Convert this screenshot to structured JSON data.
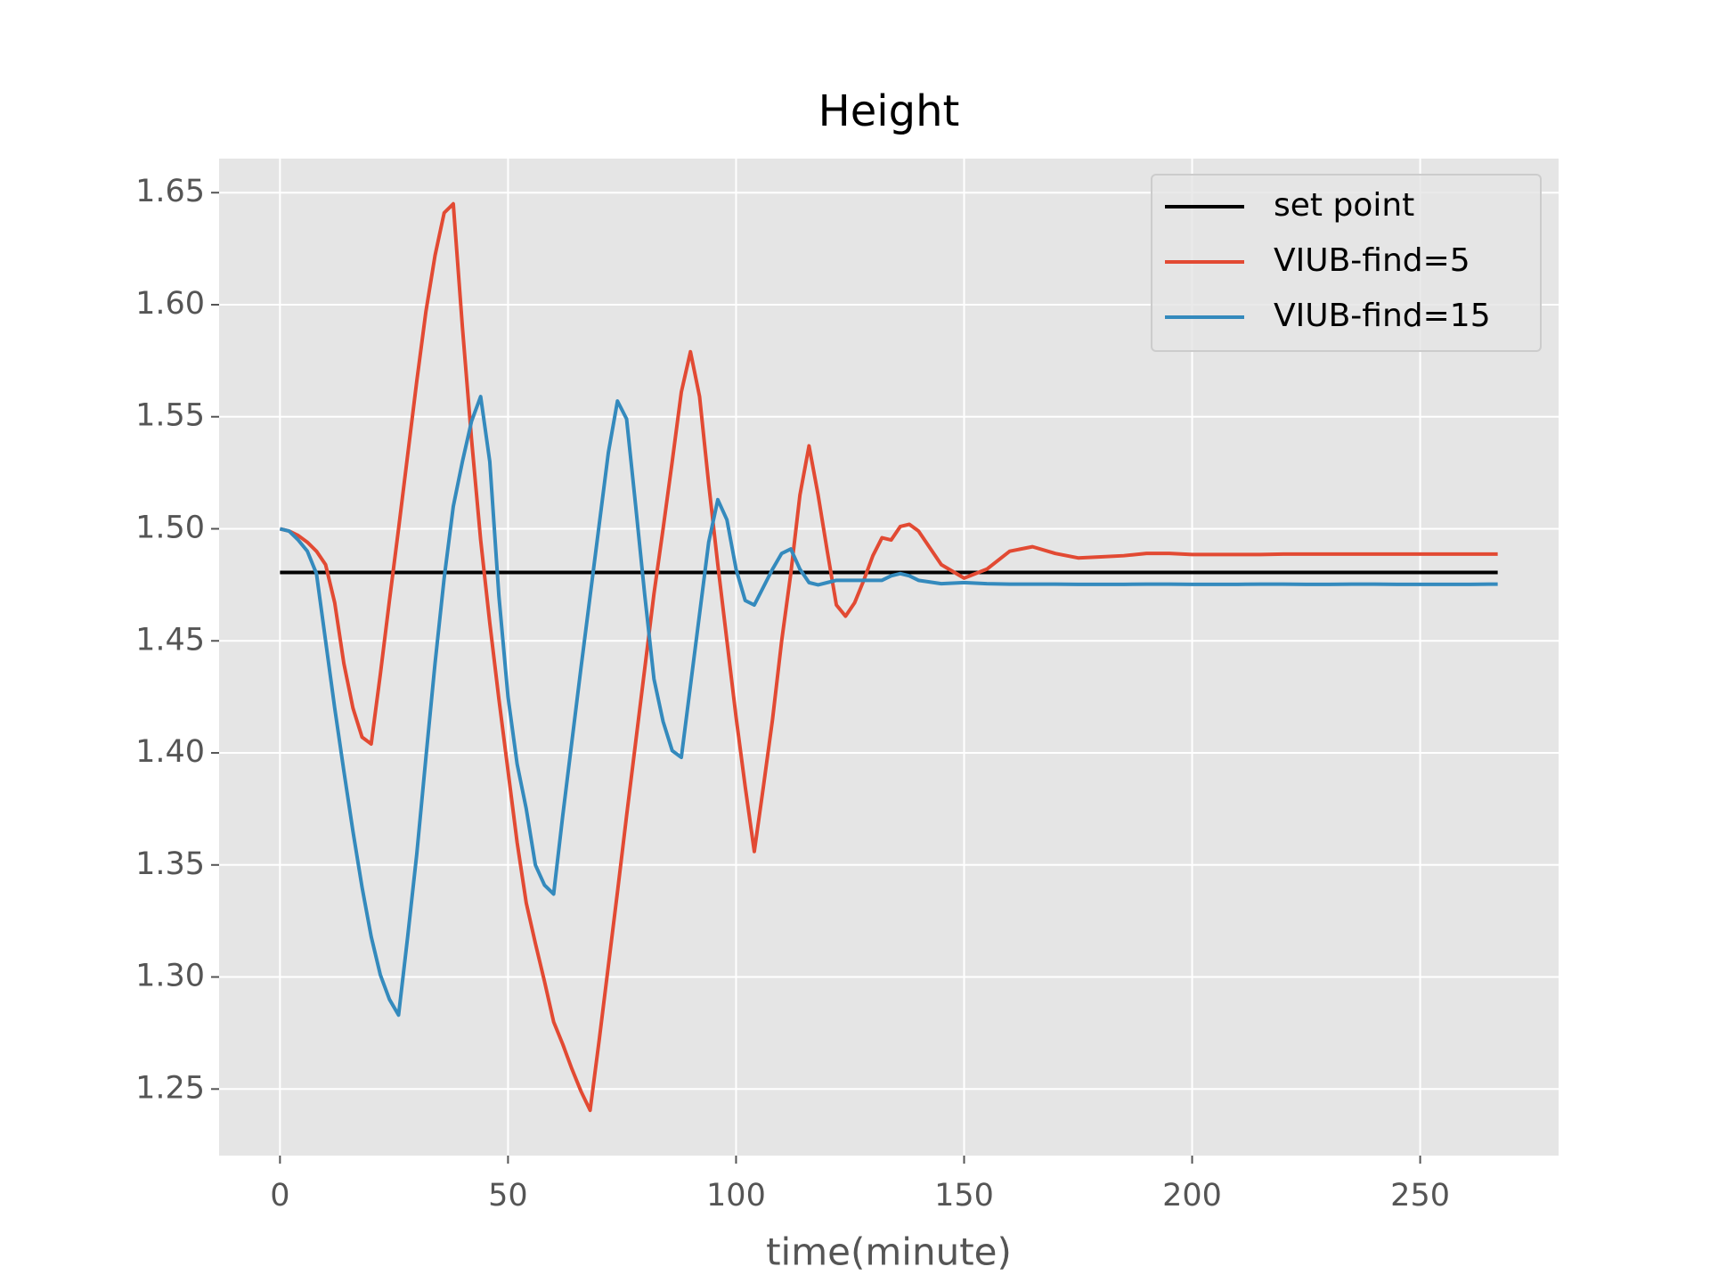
{
  "chart_data": {
    "type": "line",
    "title": "Height",
    "xlabel": "time(minute)",
    "x": [
      0,
      2,
      4,
      6,
      8,
      10,
      12,
      14,
      16,
      18,
      20,
      22,
      24,
      26,
      28,
      30,
      32,
      34,
      36,
      38,
      40,
      42,
      44,
      46,
      48,
      50,
      52,
      54,
      56,
      58,
      60,
      62,
      64,
      66,
      68,
      70,
      72,
      74,
      76,
      78,
      80,
      82,
      84,
      86,
      88,
      90,
      92,
      94,
      96,
      98,
      100,
      102,
      104,
      106,
      108,
      110,
      112,
      114,
      116,
      118,
      120,
      122,
      124,
      126,
      128,
      130,
      132,
      134,
      136,
      138,
      140,
      145,
      150,
      155,
      160,
      165,
      170,
      175,
      180,
      185,
      190,
      195,
      200,
      205,
      210,
      215,
      220,
      225,
      230,
      235,
      240,
      245,
      250,
      255,
      260,
      265,
      267
    ],
    "series": [
      {
        "name": "set point",
        "color": "#000000",
        "values": [
          1.4805,
          1.4805,
          1.4805,
          1.4805,
          1.4805,
          1.4805,
          1.4805,
          1.4805,
          1.4805,
          1.4805,
          1.4805,
          1.4805,
          1.4805,
          1.4805,
          1.4805,
          1.4805,
          1.4805,
          1.4805,
          1.4805,
          1.4805,
          1.4805,
          1.4805,
          1.4805,
          1.4805,
          1.4805,
          1.4805,
          1.4805,
          1.4805,
          1.4805,
          1.4805,
          1.4805,
          1.4805,
          1.4805,
          1.4805,
          1.4805,
          1.4805,
          1.4805,
          1.4805,
          1.4805,
          1.4805,
          1.4805,
          1.4805,
          1.4805,
          1.4805,
          1.4805,
          1.4805,
          1.4805,
          1.4805,
          1.4805,
          1.4805,
          1.4805,
          1.4805,
          1.4805,
          1.4805,
          1.4805,
          1.4805,
          1.4805,
          1.4805,
          1.4805,
          1.4805,
          1.4805,
          1.4805,
          1.4805,
          1.4805,
          1.4805,
          1.4805,
          1.4805,
          1.4805,
          1.4805,
          1.4805,
          1.4805,
          1.4805,
          1.4805,
          1.4805,
          1.4805,
          1.4805,
          1.4805,
          1.4805,
          1.4805,
          1.4805,
          1.4805,
          1.4805,
          1.4805,
          1.4805,
          1.4805,
          1.4805,
          1.4805,
          1.4805,
          1.4805,
          1.4805,
          1.4805,
          1.4805,
          1.4805,
          1.4805,
          1.4805,
          1.4805,
          1.4805
        ]
      },
      {
        "name": "VIUB-find=5",
        "color": "#e24a33",
        "values": [
          1.5,
          1.499,
          1.497,
          1.494,
          1.49,
          1.484,
          1.467,
          1.44,
          1.42,
          1.407,
          1.404,
          1.435,
          1.468,
          1.5,
          1.533,
          1.566,
          1.597,
          1.622,
          1.641,
          1.645,
          1.59,
          1.54,
          1.495,
          1.458,
          1.424,
          1.392,
          1.36,
          1.333,
          1.315,
          1.298,
          1.28,
          1.27,
          1.259,
          1.249,
          1.2405,
          1.272,
          1.305,
          1.338,
          1.372,
          1.405,
          1.438,
          1.471,
          1.5,
          1.53,
          1.561,
          1.579,
          1.559,
          1.52,
          1.484,
          1.45,
          1.416,
          1.385,
          1.356,
          1.385,
          1.415,
          1.45,
          1.48,
          1.515,
          1.537,
          1.515,
          1.49,
          1.466,
          1.461,
          1.467,
          1.477,
          1.488,
          1.496,
          1.495,
          1.501,
          1.502,
          1.499,
          1.484,
          1.478,
          1.482,
          1.49,
          1.492,
          1.489,
          1.487,
          1.4875,
          1.488,
          1.489,
          1.489,
          1.4885,
          1.4885,
          1.4885,
          1.4885,
          1.4887,
          1.4887,
          1.4887,
          1.4887,
          1.4887,
          1.4887,
          1.4887,
          1.4887,
          1.4887,
          1.4887,
          1.4887
        ]
      },
      {
        "name": "VIUB-find=15",
        "color": "#348abd",
        "values": [
          1.5,
          1.499,
          1.495,
          1.49,
          1.48,
          1.45,
          1.42,
          1.392,
          1.365,
          1.34,
          1.318,
          1.301,
          1.29,
          1.283,
          1.318,
          1.355,
          1.398,
          1.44,
          1.478,
          1.51,
          1.53,
          1.548,
          1.559,
          1.53,
          1.47,
          1.425,
          1.395,
          1.375,
          1.35,
          1.341,
          1.337,
          1.372,
          1.405,
          1.438,
          1.47,
          1.502,
          1.534,
          1.557,
          1.549,
          1.51,
          1.47,
          1.433,
          1.414,
          1.401,
          1.398,
          1.43,
          1.462,
          1.494,
          1.513,
          1.504,
          1.482,
          1.468,
          1.466,
          1.474,
          1.482,
          1.489,
          1.491,
          1.482,
          1.476,
          1.475,
          1.476,
          1.477,
          1.477,
          1.477,
          1.477,
          1.477,
          1.477,
          1.479,
          1.48,
          1.479,
          1.477,
          1.4755,
          1.476,
          1.4755,
          1.4753,
          1.4753,
          1.4753,
          1.4752,
          1.4752,
          1.4752,
          1.4753,
          1.4753,
          1.4752,
          1.4752,
          1.4752,
          1.4753,
          1.4753,
          1.4752,
          1.4752,
          1.4753,
          1.4753,
          1.4752,
          1.4752,
          1.4752,
          1.4752,
          1.4753,
          1.4753
        ]
      }
    ],
    "xlim": [
      -13.35,
      280.35
    ],
    "xticks": [
      0,
      50,
      100,
      150,
      200,
      250
    ],
    "ylim": [
      1.2203,
      1.6652
    ],
    "yticks": [
      {
        "value": 1.25,
        "label": "1.25"
      },
      {
        "value": 1.3,
        "label": "1.30"
      },
      {
        "value": 1.35,
        "label": "1.35"
      },
      {
        "value": 1.4,
        "label": "1.40"
      },
      {
        "value": 1.45,
        "label": "1.45"
      },
      {
        "value": 1.5,
        "label": "1.50"
      },
      {
        "value": 1.55,
        "label": "1.55"
      },
      {
        "value": 1.6,
        "label": "1.60"
      },
      {
        "value": 1.65,
        "label": "1.65"
      }
    ],
    "grid": true,
    "legend": "upper right"
  }
}
